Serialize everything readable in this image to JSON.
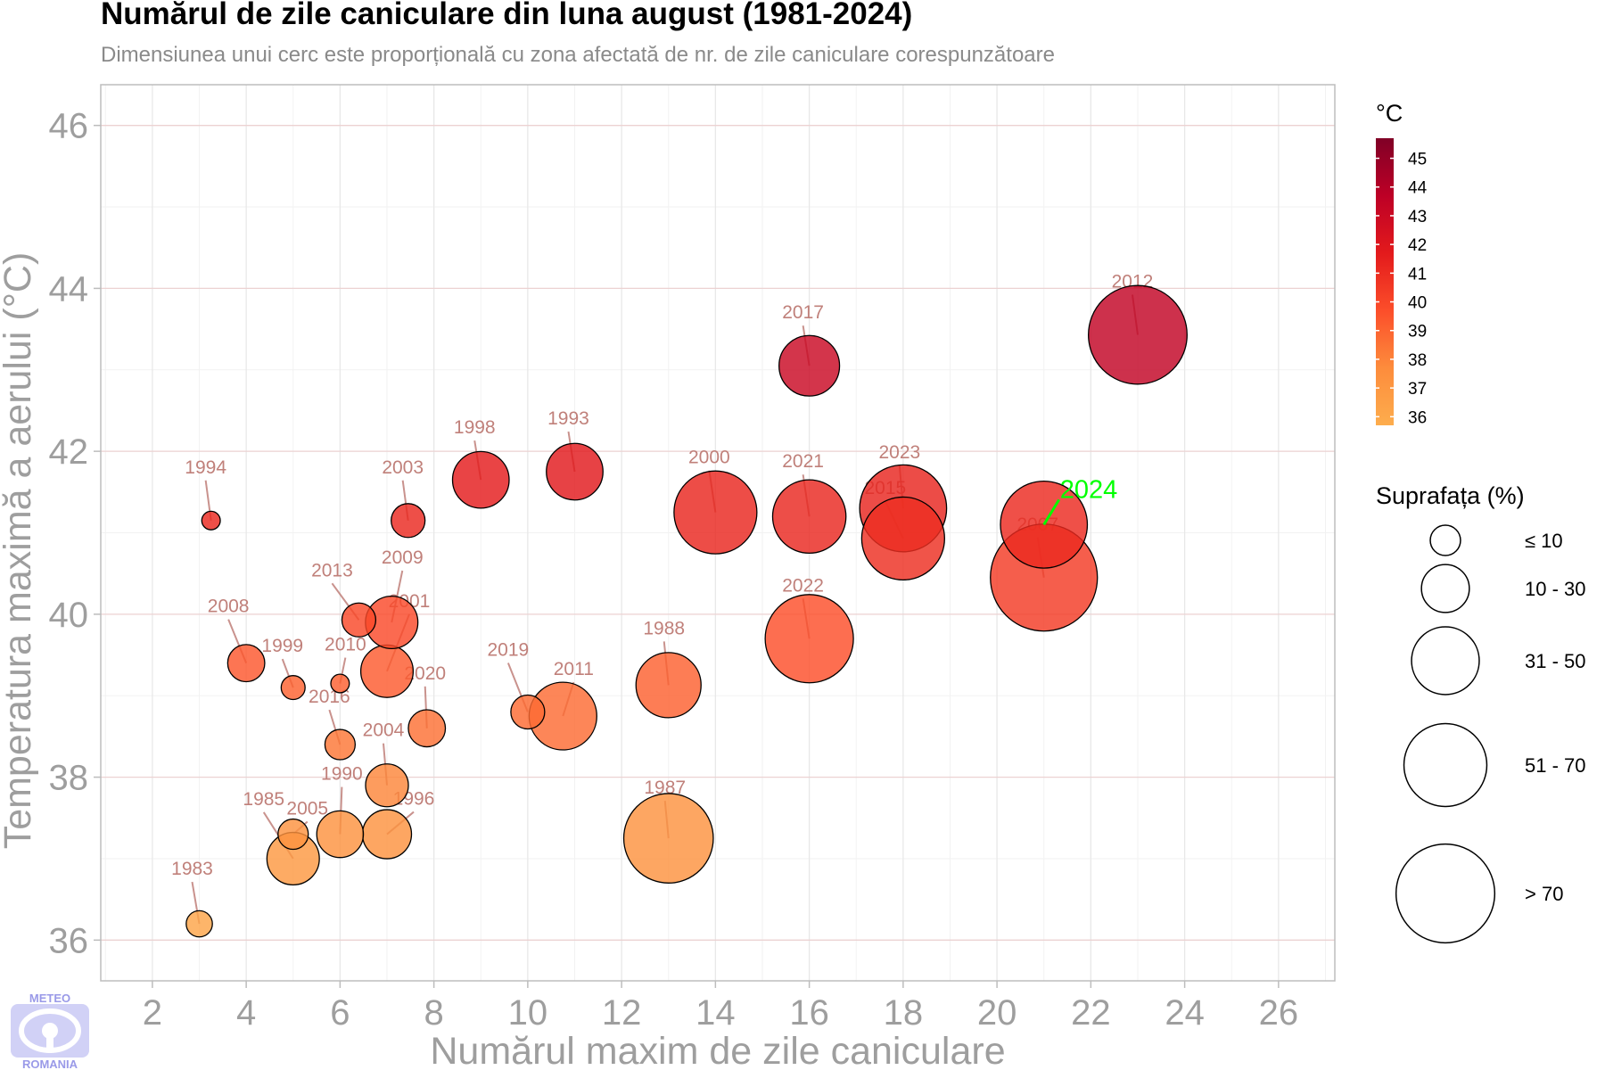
{
  "title": "Numărul de zile caniculare din luna august (1981-2024)",
  "subtitle": "Dimensiunea unui cerc este proporțională cu zona afectată de nr. de zile caniculare corespunzătoare",
  "logo": {
    "top_text": "METEO",
    "bottom_text": "ROMANIA"
  },
  "chart_data": {
    "type": "scatter",
    "xlabel": "Numărul maxim de zile caniculare",
    "ylabel": "Temperatura maximă a aerului (°C)",
    "xlim": [
      0.9,
      27.2
    ],
    "ylim": [
      35.5,
      46.5
    ],
    "xticks": [
      2,
      4,
      6,
      8,
      10,
      12,
      14,
      16,
      18,
      20,
      22,
      24,
      26
    ],
    "yticks": [
      36,
      38,
      40,
      42,
      44,
      46
    ],
    "grid": true,
    "highlight_color": "#00ff00",
    "label_color": "#c0807a",
    "color_legend": {
      "title": "°C",
      "ticks": [
        45,
        44,
        43,
        42,
        41,
        40,
        39,
        38,
        37,
        36
      ],
      "range": [
        35.7,
        45.7
      ],
      "colors": [
        "#fdad4d",
        "#fd8c3c",
        "#fc4e2a",
        "#e31a1c",
        "#bd0026",
        "#800026"
      ]
    },
    "size_legend": {
      "title": "Suprafața (%)",
      "classes": [
        {
          "label": "≤ 10",
          "value": 8
        },
        {
          "label": "10 - 30",
          "value": 20
        },
        {
          "label": "31 - 50",
          "value": 40
        },
        {
          "label": "51 - 70",
          "value": 60
        },
        {
          "label": "> 70",
          "value": 85
        }
      ]
    },
    "points": [
      {
        "year": "1983",
        "x": 3.0,
        "y": 36.2,
        "area": 6
      },
      {
        "year": "1985",
        "x": 5.0,
        "y": 37.0,
        "area": 24
      },
      {
        "year": "2005",
        "x": 5.0,
        "y": 37.3,
        "area": 8
      },
      {
        "year": "1990",
        "x": 6.0,
        "y": 37.3,
        "area": 19
      },
      {
        "year": "1996",
        "x": 7.0,
        "y": 37.3,
        "area": 21
      },
      {
        "year": "2004",
        "x": 7.0,
        "y": 37.9,
        "area": 16
      },
      {
        "year": "2016",
        "x": 6.0,
        "y": 38.4,
        "area": 8
      },
      {
        "year": "2020",
        "x": 7.85,
        "y": 38.6,
        "area": 12
      },
      {
        "year": "1999",
        "x": 5.0,
        "y": 39.1,
        "area": 5
      },
      {
        "year": "2010",
        "x": 6.0,
        "y": 39.15,
        "area": 3
      },
      {
        "year": "2008",
        "x": 4.0,
        "y": 39.4,
        "area": 12
      },
      {
        "year": "2001",
        "x": 7.0,
        "y": 39.3,
        "area": 24
      },
      {
        "year": "2013",
        "x": 6.4,
        "y": 39.93,
        "area": 10
      },
      {
        "year": "2009",
        "x": 7.1,
        "y": 39.9,
        "area": 24
      },
      {
        "year": "2019",
        "x": 10.0,
        "y": 38.8,
        "area": 10
      },
      {
        "year": "2011",
        "x": 10.75,
        "y": 38.75,
        "area": 40
      },
      {
        "year": "1988",
        "x": 13.0,
        "y": 39.13,
        "area": 37
      },
      {
        "year": "1987",
        "x": 13.0,
        "y": 37.25,
        "area": 70
      },
      {
        "year": "1994",
        "x": 3.25,
        "y": 41.15,
        "area": 3
      },
      {
        "year": "2003",
        "x": 7.45,
        "y": 41.15,
        "area": 10
      },
      {
        "year": "1998",
        "x": 9.0,
        "y": 41.65,
        "area": 28
      },
      {
        "year": "1993",
        "x": 11.0,
        "y": 41.75,
        "area": 28
      },
      {
        "year": "2000",
        "x": 14.0,
        "y": 41.25,
        "area": 60
      },
      {
        "year": "2021",
        "x": 16.0,
        "y": 41.2,
        "area": 47
      },
      {
        "year": "2022",
        "x": 16.0,
        "y": 39.7,
        "area": 68
      },
      {
        "year": "2017",
        "x": 16.0,
        "y": 43.05,
        "area": 32
      },
      {
        "year": "2023",
        "x": 18.0,
        "y": 41.3,
        "area": 66
      },
      {
        "year": "2015",
        "x": 18.0,
        "y": 40.93,
        "area": 60
      },
      {
        "year": "2007",
        "x": 21.0,
        "y": 40.45,
        "area": 100
      },
      {
        "year": "2024",
        "x": 21.0,
        "y": 41.1,
        "area": 66,
        "highlight": true
      },
      {
        "year": "2012",
        "x": 23.0,
        "y": 43.43,
        "area": 85
      }
    ]
  }
}
